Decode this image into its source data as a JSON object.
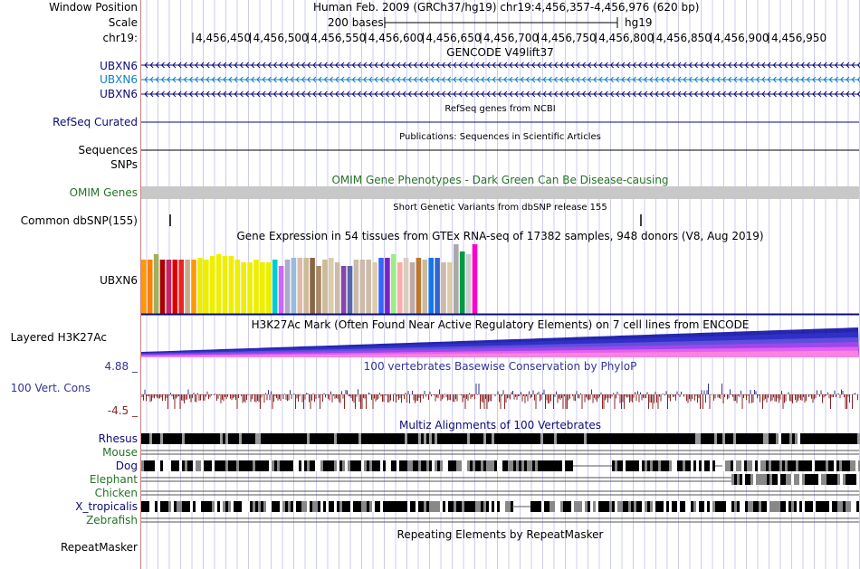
{
  "header": {
    "window_position_label": "Window Position",
    "window_position": "Human Feb. 2009 (GRCh37/hg19)    chr19:4,456,357-4,456,976 (620 bp)",
    "scale_label": "Scale",
    "scale_value": "200 bases",
    "scale_db": "hg19",
    "chrom_label": "chr19:",
    "ruler_ticks": [
      "4,456,450",
      "4,456,500",
      "4,456,550",
      "4,456,600",
      "4,456,650",
      "4,456,700",
      "4,456,750",
      "4,456,800",
      "4,456,850",
      "4,456,900",
      "4,456,950"
    ]
  },
  "tracks": {
    "gencode": {
      "title": "GENCODE V49lift37",
      "items": [
        "UBXN6",
        "UBXN6",
        "UBXN6"
      ]
    },
    "refseq": {
      "label": "RefSeq Curated",
      "title": "RefSeq genes from NCBI"
    },
    "publications": {
      "label": "Sequences",
      "title": "Publications: Sequences in Scientific Articles"
    },
    "snps_label": "SNPs",
    "omim": {
      "label": "OMIM Genes",
      "title": "OMIM Gene Phenotypes - Dark Green Can Be Disease-causing"
    },
    "dbsnp": {
      "label": "Common dbSNP(155)",
      "title": "Short Genetic Variants from dbSNP release 155"
    },
    "gtex": {
      "label": "UBXN6",
      "title": "Gene Expression in 54 tissues from GTEx RNA-seq of 17382 samples, 948 donors (V8, Aug 2019)",
      "bars": [
        {
          "color": "#ff9900",
          "value": 0.6
        },
        {
          "color": "#ff7f00",
          "value": 0.6
        },
        {
          "color": "#a0b060",
          "value": 0.66
        },
        {
          "color": "#aa0000",
          "value": 0.6
        },
        {
          "color": "#cc2266",
          "value": 0.6
        },
        {
          "color": "#dd0000",
          "value": 0.6
        },
        {
          "color": "#ee2222",
          "value": 0.6
        },
        {
          "color": "#ccaa88",
          "value": 0.6
        },
        {
          "color": "#ff9900",
          "value": 0.6
        },
        {
          "color": "#eeee00",
          "value": 0.62
        },
        {
          "color": "#eeee00",
          "value": 0.6
        },
        {
          "color": "#eeee00",
          "value": 0.64
        },
        {
          "color": "#eeee00",
          "value": 0.66
        },
        {
          "color": "#eeee00",
          "value": 0.64
        },
        {
          "color": "#eeee00",
          "value": 0.64
        },
        {
          "color": "#eeee00",
          "value": 0.6
        },
        {
          "color": "#eeee00",
          "value": 0.57
        },
        {
          "color": "#eeee00",
          "value": 0.57
        },
        {
          "color": "#eeee00",
          "value": 0.6
        },
        {
          "color": "#eeee00",
          "value": 0.57
        },
        {
          "color": "#eeee00",
          "value": 0.57
        },
        {
          "color": "#00cccc",
          "value": 0.6
        },
        {
          "color": "#cc66ff",
          "value": 0.53
        },
        {
          "color": "#aaaacc",
          "value": 0.6
        },
        {
          "color": "#99bbdd",
          "value": 0.62
        },
        {
          "color": "#ddbbaa",
          "value": 0.62
        },
        {
          "color": "#ccbb99",
          "value": 0.62
        },
        {
          "color": "#886644",
          "value": 0.62
        },
        {
          "color": "#aa8866",
          "value": 0.53
        },
        {
          "color": "#ccbb99",
          "value": 0.6
        },
        {
          "color": "#ddccaa",
          "value": 0.62
        },
        {
          "color": "#ccbbaa",
          "value": 0.57
        },
        {
          "color": "#8844aa",
          "value": 0.53
        },
        {
          "color": "#5566aa",
          "value": 0.53
        },
        {
          "color": "#ccbbaa",
          "value": 0.6
        },
        {
          "color": "#ccbbaa",
          "value": 0.6
        },
        {
          "color": "#ccbbaa",
          "value": 0.6
        },
        {
          "color": "#ddccaa",
          "value": 0.57
        },
        {
          "color": "#3366ff",
          "value": 0.62
        },
        {
          "color": "#7722cc",
          "value": 0.62
        },
        {
          "color": "#99ee88",
          "value": 0.66
        },
        {
          "color": "#ffaaaa",
          "value": 0.57
        },
        {
          "color": "#ddccbb",
          "value": 0.62
        },
        {
          "color": "#bbaaaa",
          "value": 0.57
        },
        {
          "color": "#bb7733",
          "value": 0.62
        },
        {
          "color": "#ccbb99",
          "value": 0.6
        },
        {
          "color": "#1177ee",
          "value": 0.62
        },
        {
          "color": "#3366cc",
          "value": 0.62
        },
        {
          "color": "#ccbbaa",
          "value": 0.57
        },
        {
          "color": "#ddccaa",
          "value": 0.57
        },
        {
          "color": "#aaaaaa",
          "value": 0.77
        },
        {
          "color": "#009944",
          "value": 0.69
        },
        {
          "color": "#cccccc",
          "value": 0.66
        },
        {
          "color": "#ff00cc",
          "value": 0.77
        }
      ]
    },
    "h3k27ac": {
      "label": "Layered H3K27Ac",
      "title": "H3K27Ac Mark (Often Found Near Active Regulatory Elements) on 7 cell lines from ENCODE"
    },
    "conservation": {
      "label": "100 Vert. Cons",
      "ymax": "4.88 _",
      "ymin": "-4.5 _",
      "title": "100 vertebrates Basewise Conservation by PhyloP"
    },
    "multiz": {
      "title": "Multiz Alignments of 100 Vertebrates",
      "species": [
        "Rhesus",
        "Mouse",
        "Dog",
        "Elephant",
        "Chicken",
        "X_tropicalis",
        "Zebrafish"
      ]
    },
    "repeatmasker": {
      "label": "RepeatMasker",
      "title": "Repeating Elements by RepeatMasker"
    }
  },
  "colors": {
    "gencode_dark": "#0c0c78",
    "gencode_light": "#1180bf",
    "refseq": "#0c0c78",
    "omim": "#267326",
    "conservation_label": "#333399",
    "cons_pos": "#333399",
    "cons_neg": "#8b2323",
    "grid": "#ccccee"
  }
}
